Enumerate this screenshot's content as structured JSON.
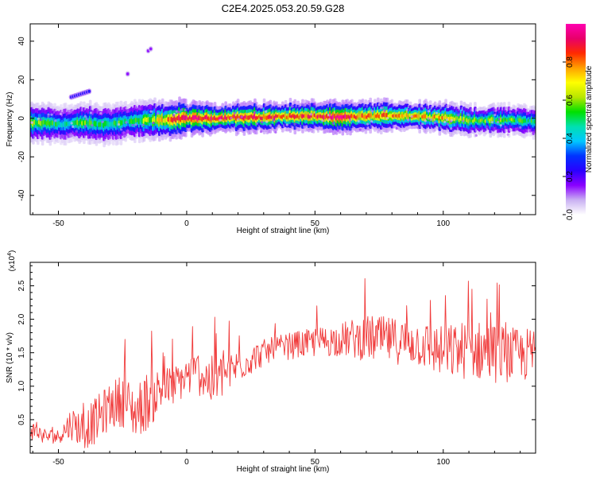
{
  "title": "C2E4.2025.053.20.59.G28",
  "chart_data": [
    {
      "type": "heatmap",
      "xlabel": "Height of straight line (km)",
      "ylabel": "Frequency (Hz)",
      "xlim": [
        -61,
        136
      ],
      "ylim": [
        -50,
        49
      ],
      "xticks": [
        -50,
        0,
        50,
        100
      ],
      "xtick_labels": [
        "-50",
        "0",
        "50",
        "100"
      ],
      "yticks": [
        -40,
        -20,
        0,
        20,
        40
      ],
      "ytick_labels": [
        "-40",
        "-20",
        "0",
        "20",
        "40"
      ],
      "grid": false,
      "colorbar": {
        "label": "Normalized spectral amplitude",
        "range": [
          0,
          1
        ],
        "ticks": [
          0,
          0.2,
          0.4,
          0.6,
          0.8
        ],
        "tick_labels": [
          "0.0",
          "0.2",
          "0.4",
          "0.6",
          "0.8"
        ],
        "colormap": [
          "#ffffff",
          "#c9b0f2",
          "#8a00ff",
          "#2a00ff",
          "#0033ff",
          "#00c8ff",
          "#00e0b0",
          "#00e000",
          "#b8e600",
          "#ffff00",
          "#ffa000",
          "#ff2a00",
          "#e8006a",
          "#ff00b0"
        ]
      },
      "ridge": {
        "description_points_x": [
          -61,
          -55,
          -50,
          -45,
          -40,
          -35,
          -30,
          -25,
          -20,
          -15,
          -10,
          -5,
          0,
          10,
          20,
          30,
          40,
          50,
          60,
          70,
          80,
          90,
          100,
          110,
          120,
          130,
          136
        ],
        "frequency_hz": [
          -2.5,
          -2.5,
          -3,
          -3,
          -2,
          -3,
          -3,
          -2,
          -1.5,
          -1,
          -1,
          -0.5,
          0,
          0,
          0.5,
          0.5,
          1,
          1,
          0.5,
          1,
          1.5,
          1,
          0.5,
          -1,
          -1,
          -1,
          -2
        ],
        "amplitude": [
          0.55,
          0.6,
          0.5,
          0.45,
          0.55,
          0.5,
          0.55,
          0.5,
          0.55,
          0.6,
          0.7,
          0.85,
          0.95,
          0.9,
          0.9,
          0.85,
          0.85,
          0.85,
          0.95,
          0.8,
          0.8,
          0.75,
          0.75,
          0.6,
          0.55,
          0.55,
          0.5
        ]
      },
      "side_features": [
        {
          "x": [
            -45,
            -38
          ],
          "frequency_hz": [
            11,
            14
          ],
          "amplitude": 0.25
        },
        {
          "x": [
            -23,
            -23
          ],
          "frequency_hz": [
            23,
            23
          ],
          "amplitude": 0.15
        },
        {
          "x": [
            -15,
            -14
          ],
          "frequency_hz": [
            35,
            36
          ],
          "amplitude": 0.15
        }
      ]
    },
    {
      "type": "line",
      "xlabel": "Height of straight line (km)",
      "ylabel": "SNR (10 * v/v)",
      "multiplier_label": "(x10",
      "multiplier_exp": "4",
      "multiplier_close": ")",
      "xlim": [
        -61,
        136
      ],
      "ylim": [
        0,
        2.85
      ],
      "xticks": [
        -50,
        0,
        50,
        100
      ],
      "xtick_labels": [
        "-50",
        "0",
        "50",
        "100"
      ],
      "yticks": [
        0.5,
        1.0,
        1.5,
        2.0,
        2.5
      ],
      "ytick_labels": [
        "0.5",
        "1.0",
        "1.5",
        "2.0",
        "2.5"
      ],
      "grid": false,
      "series": [
        {
          "color": "#f03a3a",
          "trend_x": [
            -61,
            -55,
            -50,
            -45,
            -40,
            -35,
            -30,
            -25,
            -20,
            -15,
            -10,
            -5,
            0,
            5,
            10,
            20,
            30,
            40,
            50,
            60,
            70,
            80,
            90,
            100,
            110,
            120,
            130,
            136
          ],
          "trend_y": [
            0.35,
            0.25,
            0.25,
            0.45,
            0.35,
            0.5,
            0.7,
            0.8,
            0.6,
            0.8,
            0.95,
            1.0,
            1.15,
            1.2,
            1.05,
            1.3,
            1.5,
            1.6,
            1.65,
            1.7,
            1.72,
            1.68,
            1.65,
            1.5,
            1.55,
            1.5,
            1.45,
            1.5
          ],
          "noise_amplitude": [
            0.15,
            0.12,
            0.1,
            0.25,
            0.3,
            0.35,
            0.35,
            0.4,
            0.4,
            0.45,
            0.35,
            0.3,
            0.3,
            0.35,
            0.4,
            0.25,
            0.2,
            0.2,
            0.22,
            0.25,
            0.35,
            0.35,
            0.35,
            0.4,
            0.45,
            0.45,
            0.4,
            0.4
          ]
        }
      ]
    }
  ]
}
